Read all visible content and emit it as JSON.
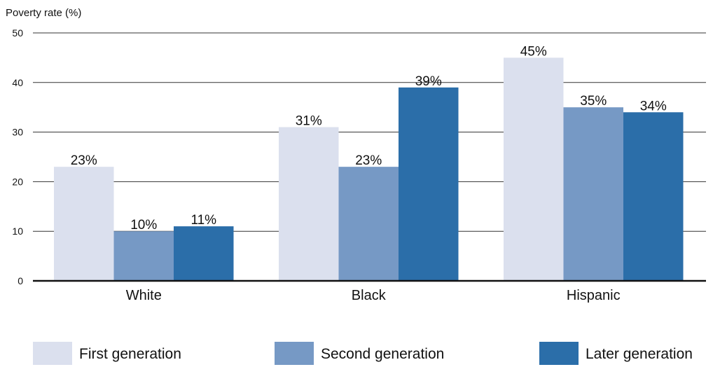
{
  "chart_data": {
    "type": "bar",
    "title": "",
    "ylabel": "Poverty rate (%)",
    "xlabel": "",
    "ylim": [
      0,
      50
    ],
    "yticks": [
      0,
      10,
      20,
      30,
      40,
      50
    ],
    "grid": true,
    "legend_position": "bottom",
    "categories": [
      "White",
      "Black",
      "Hispanic"
    ],
    "series": [
      {
        "name": "First generation",
        "color": "#dbe0ee",
        "values": [
          23,
          31,
          45
        ],
        "labels": [
          "23%",
          "31%",
          "45%"
        ]
      },
      {
        "name": "Second generation",
        "color": "#7699c5",
        "values": [
          10,
          23,
          35
        ],
        "labels": [
          "10%",
          "23%",
          "35%"
        ]
      },
      {
        "name": "Later generation",
        "color": "#2b6ea9",
        "values": [
          11,
          39,
          34
        ],
        "labels": [
          "11%",
          "39%",
          "34%"
        ]
      }
    ]
  }
}
